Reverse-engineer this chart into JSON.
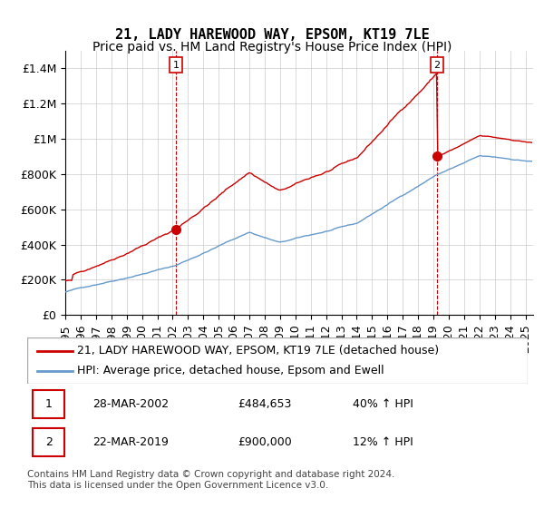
{
  "title": "21, LADY HAREWOOD WAY, EPSOM, KT19 7LE",
  "subtitle": "Price paid vs. HM Land Registry's House Price Index (HPI)",
  "ylabel_ticks": [
    "£0",
    "£200K",
    "£400K",
    "£600K",
    "£800K",
    "£1M",
    "£1.2M",
    "£1.4M"
  ],
  "ytick_values": [
    0,
    200000,
    400000,
    600000,
    800000,
    1000000,
    1200000,
    1400000
  ],
  "ylim": [
    0,
    1500000
  ],
  "xlim_start": 1995.0,
  "xlim_end": 2025.5,
  "purchase1_x": 2002.23,
  "purchase1_y": 484653,
  "purchase2_x": 2019.22,
  "purchase2_y": 900000,
  "label1": "1",
  "label2": "2",
  "legend_line1": "21, LADY HAREWOOD WAY, EPSOM, KT19 7LE (detached house)",
  "legend_line2": "HPI: Average price, detached house, Epsom and Ewell",
  "table_row1": [
    "1",
    "28-MAR-2002",
    "£484,653",
    "40% ↑ HPI"
  ],
  "table_row2": [
    "2",
    "22-MAR-2019",
    "£900,000",
    "12% ↑ HPI"
  ],
  "footnote": "Contains HM Land Registry data © Crown copyright and database right 2024.\nThis data is licensed under the Open Government Licence v3.0.",
  "line_color_red": "#cc0000",
  "line_color_blue": "#6699cc",
  "vline_color": "#cc0000",
  "background_color": "#ffffff",
  "grid_color": "#cccccc",
  "title_fontsize": 11,
  "subtitle_fontsize": 10,
  "tick_fontsize": 9,
  "legend_fontsize": 9,
  "table_fontsize": 9,
  "footnote_fontsize": 7.5
}
